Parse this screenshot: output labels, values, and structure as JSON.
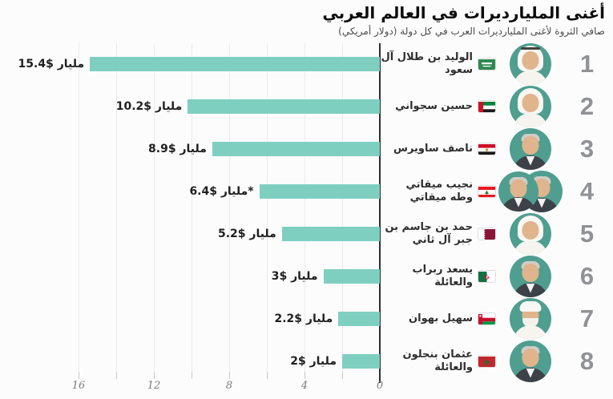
{
  "header": {
    "title": "أغنى المليارديرات في العالم العربي",
    "subtitle": "صافي الثروة لأغنى المليارديرات العرب في كل دولة (دولار أمريكي)"
  },
  "chart_data": {
    "type": "bar",
    "orientation": "horizontal",
    "direction": "rtl",
    "title": "أغنى المليارديرات في العالم العربي",
    "subtitle": "صافي الثروة لأغنى المليارديرات العرب في كل دولة (دولار أمريكي)",
    "unit": "billions USD",
    "categories": [
      "الوليد بن طلال آل سعود",
      "حسين سجواني",
      "ناصف ساويرس",
      "نجيب ميقاتي وطه ميقاتي",
      "حمد بن جاسم بن جبر آل ثاني",
      "يسعد ربراب والعائلة",
      "سهيل بهوان",
      "عثمان بنجلون والعائلة"
    ],
    "values": [
      15.4,
      10.2,
      8.9,
      6.4,
      5.2,
      3,
      2.2,
      2
    ],
    "value_labels": [
      "مليار $15.4",
      "مليار $10.2",
      "مليار $8.9",
      "مليار $6.4*",
      "مليار $5.2",
      "مليار $3",
      "مليار $2.2",
      "مليار $2"
    ],
    "countries": [
      "Saudi Arabia",
      "United Arab Emirates",
      "Egypt",
      "Lebanon",
      "Qatar",
      "Algeria",
      "Oman",
      "Morocco"
    ],
    "xlim": [
      0,
      16
    ],
    "x_tick_labels": [
      "16",
      "12",
      "8",
      "4",
      "0"
    ],
    "grid": true,
    "legend": "none",
    "bar_color": "#7FCFC1",
    "avatar_bg_color": "#4F9E90"
  },
  "rows": [
    {
      "rank": "1",
      "name": "الوليد بن طلال آل سعود",
      "country": "Saudi Arabia",
      "label": "مليار $15.4",
      "value": 15.4
    },
    {
      "rank": "2",
      "name": "حسين سجواني",
      "country": "United Arab Emirates",
      "label": "مليار $10.2",
      "value": 10.2
    },
    {
      "rank": "3",
      "name": "ناصف ساويرس",
      "country": "Egypt",
      "label": "مليار $8.9",
      "value": 8.9
    },
    {
      "rank": "4",
      "name": "نجيب ميقاتي وطه ميقاتي",
      "country": "Lebanon",
      "label": "مليار $6.4*",
      "value": 6.4
    },
    {
      "rank": "5",
      "name": "حمد بن جاسم بن جبر آل ثاني",
      "country": "Qatar",
      "label": "مليار $5.2",
      "value": 5.2
    },
    {
      "rank": "6",
      "name": "يسعد ربراب والعائلة",
      "country": "Algeria",
      "label": "مليار $3",
      "value": 3
    },
    {
      "rank": "7",
      "name": "سهيل بهوان",
      "country": "Oman",
      "label": "مليار $2.2",
      "value": 2.2
    },
    {
      "rank": "8",
      "name": "عثمان بنجلون والعائلة",
      "country": "Morocco",
      "label": "مليار $2",
      "value": 2
    }
  ]
}
